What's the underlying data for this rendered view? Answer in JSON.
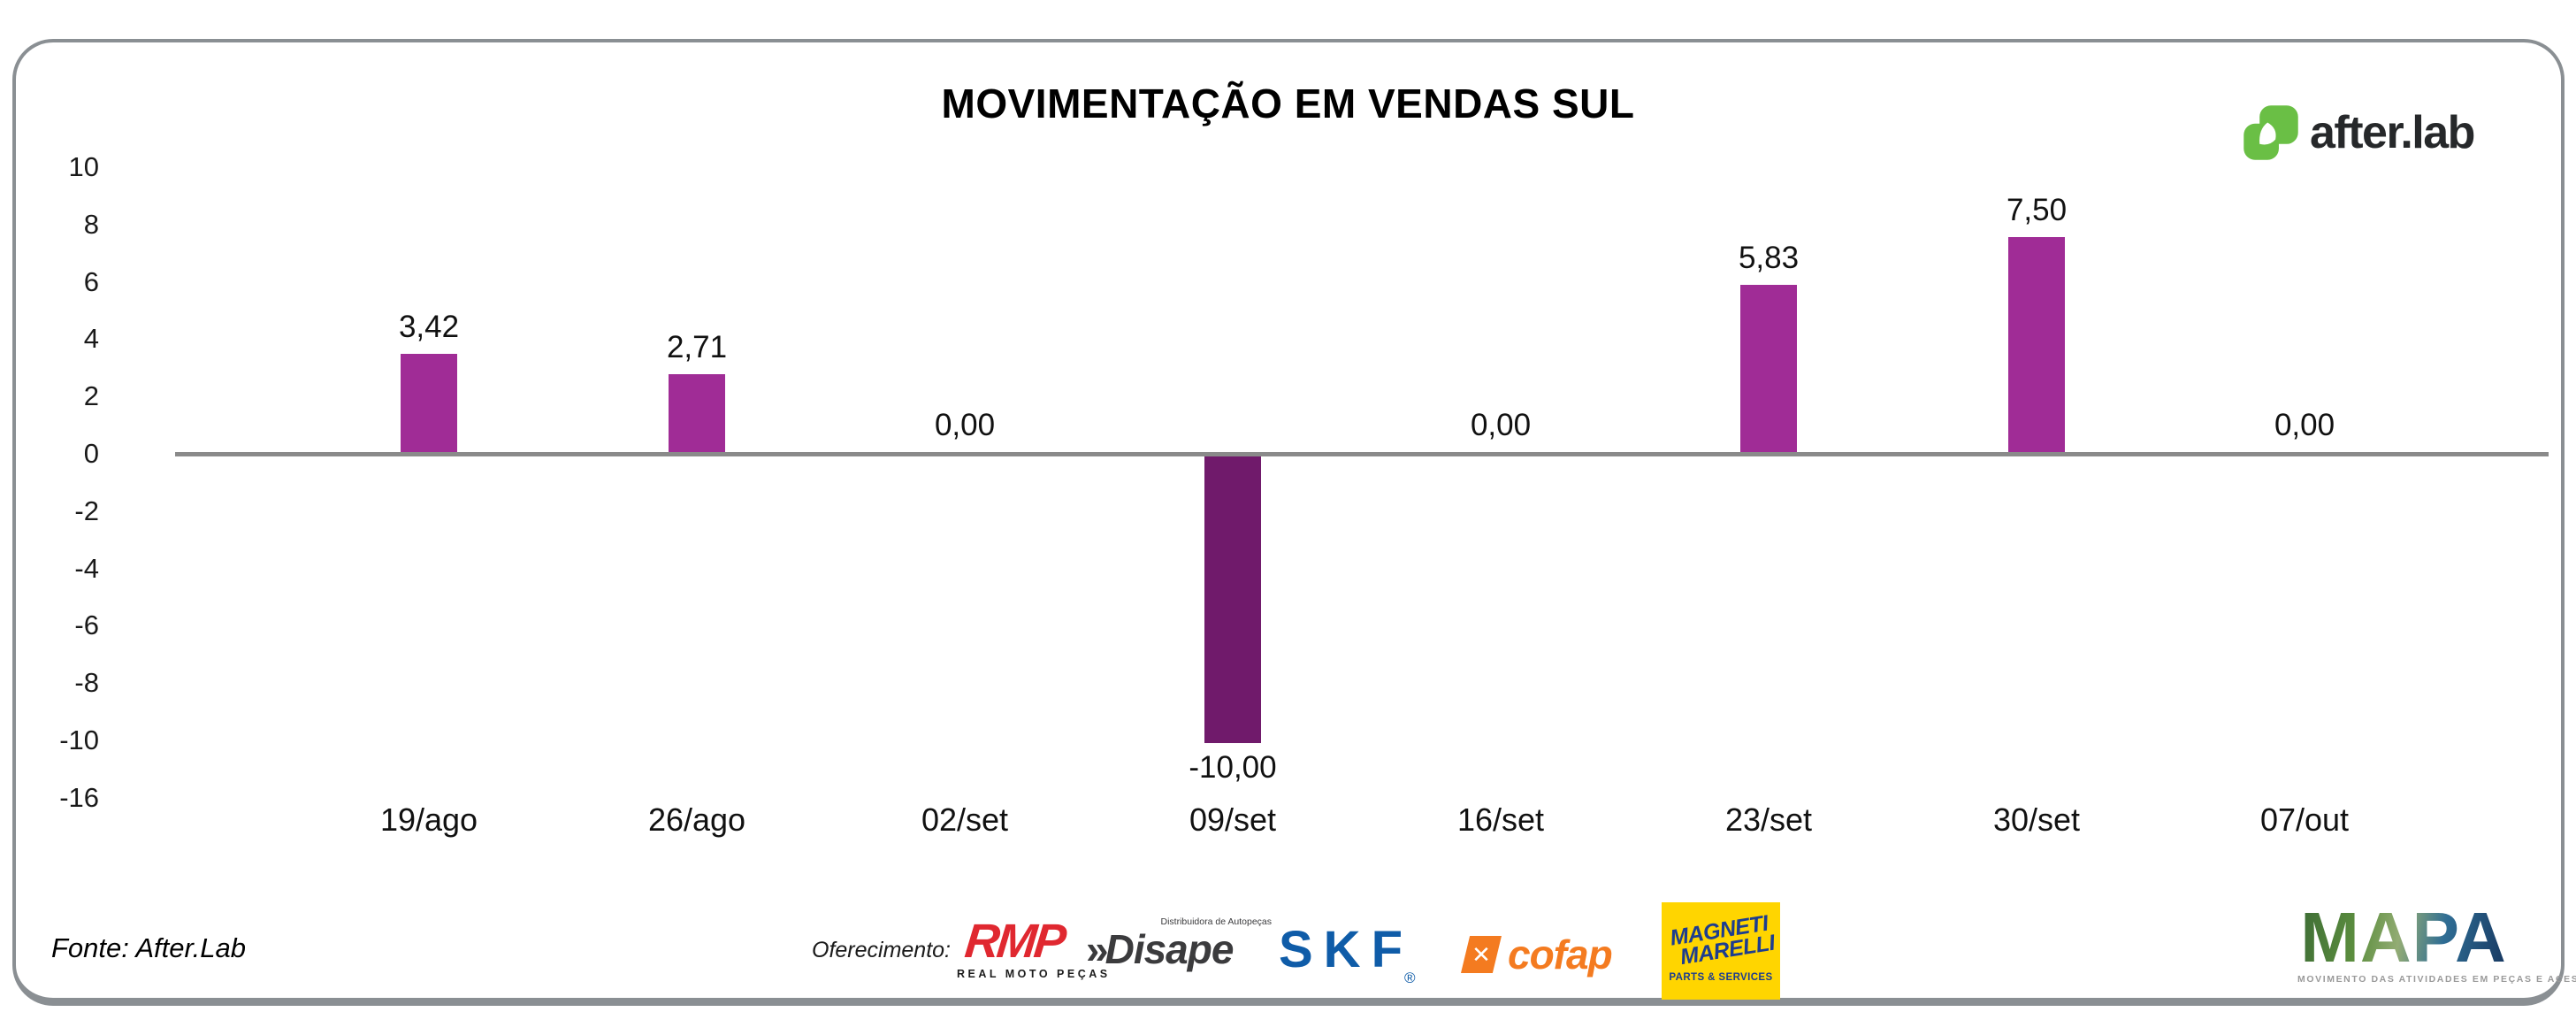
{
  "page": {
    "title": "MOVIMENTAÇÃO EM VENDAS SUL"
  },
  "branding": {
    "logo_text": "after.lab",
    "logo_green": "#6abf45"
  },
  "chart_data": {
    "type": "bar",
    "title": "MOVIMENTAÇÃO EM VENDAS SUL",
    "categories": [
      "19/ago",
      "26/ago",
      "02/set",
      "09/set",
      "16/set",
      "23/set",
      "30/set",
      "07/out"
    ],
    "values": [
      3.42,
      2.71,
      0,
      -10,
      0,
      5.83,
      7.5,
      0
    ],
    "value_labels": [
      "3,42",
      "2,71",
      "0,00",
      "-10,00",
      "0,00",
      "5,83",
      "7,50",
      "0,00"
    ],
    "y_ticks": [
      "10",
      "8",
      "6",
      "4",
      "2",
      "0",
      "-2",
      "-4",
      "-6",
      "-8",
      "-10",
      "-16"
    ],
    "ylim": [
      -16,
      10
    ],
    "xlabel": "",
    "ylabel": "",
    "grid": false,
    "legend_position": "none",
    "colors": {
      "bar_positive": "#a02c96",
      "bar_negative": "#701a6b",
      "zero_line": "#8a8a8a"
    }
  },
  "footer": {
    "source": "Fonte: After.Lab",
    "sponsorship_label": "Oferecimento:",
    "sponsors": {
      "rmp": {
        "text": "RMP",
        "tagline": "REAL MOTO PEÇAS"
      },
      "disape": {
        "prefix": "»",
        "text": "Disape",
        "tagline": "Distribuidora de Autopeças"
      },
      "skf": {
        "text": "SKF",
        "reg": "®"
      },
      "cofap": {
        "icon_text": "✕",
        "text": "cofap"
      },
      "magneti_marelli": {
        "line1": "MAGNETI",
        "line2": "MARELLI",
        "tagline": "PARTS & SERVICES"
      },
      "mapa": {
        "text": "MAPA",
        "tagline": "MOVIMENTO DAS ATIVIDADES EM PEÇAS E ACESSÓRIOS"
      }
    }
  }
}
